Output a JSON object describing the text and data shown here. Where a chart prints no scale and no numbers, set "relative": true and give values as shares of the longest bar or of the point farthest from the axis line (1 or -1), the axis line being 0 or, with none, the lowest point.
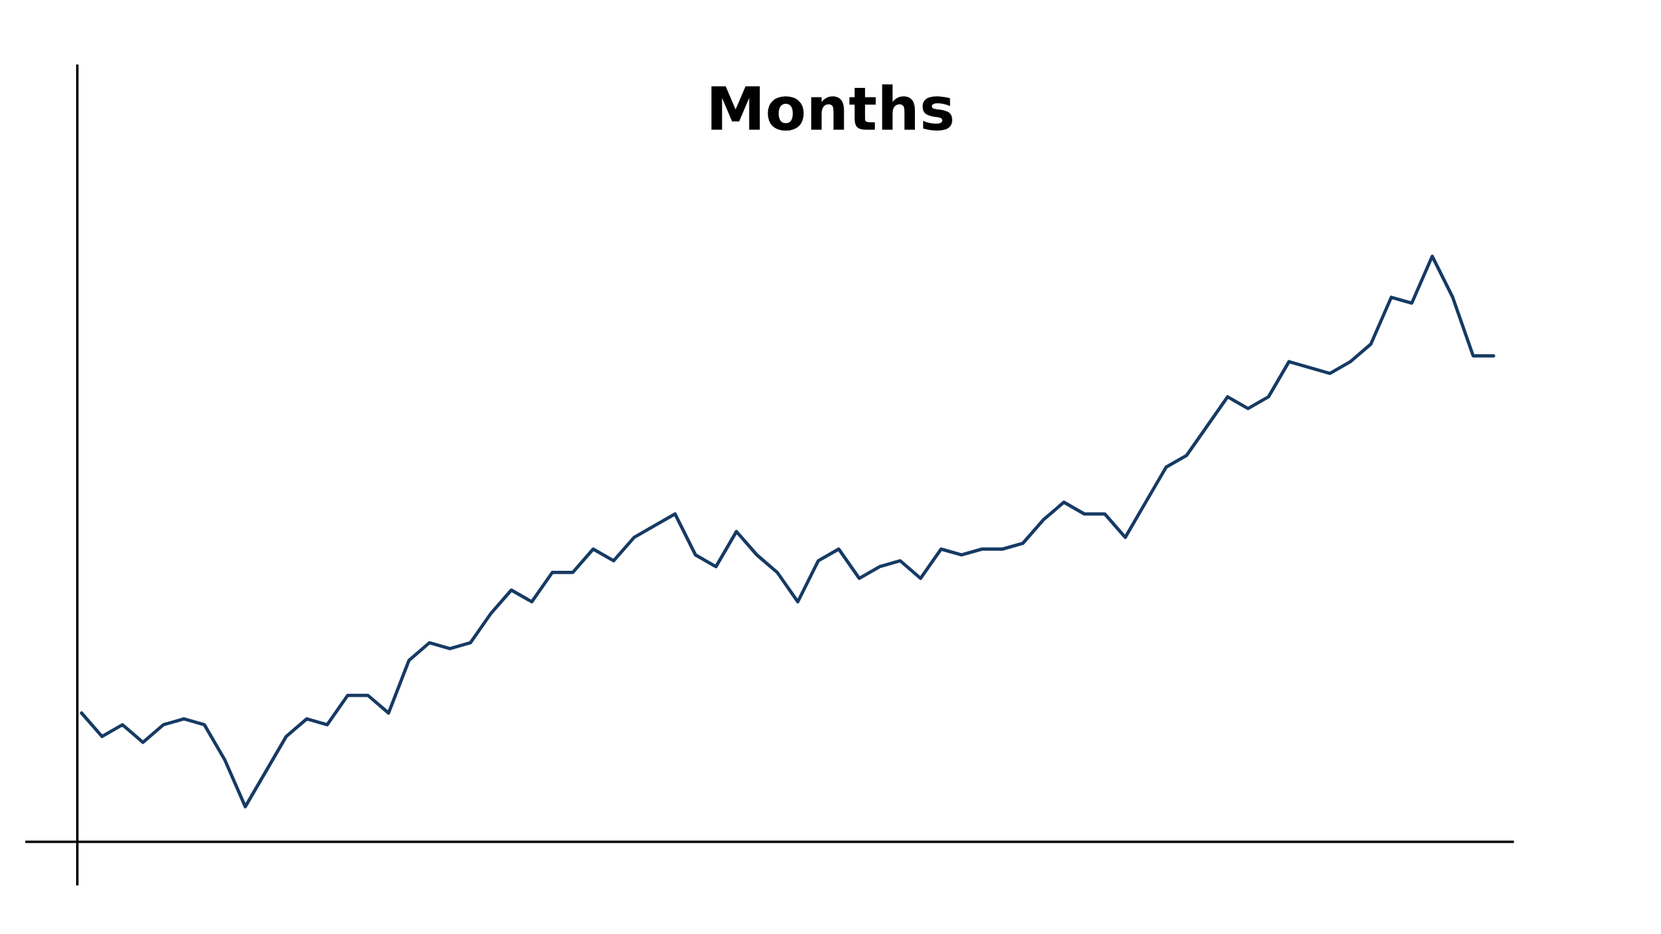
{
  "chart_data": {
    "type": "line",
    "title": "Months",
    "relative": true,
    "tick_labels": false,
    "grid": false,
    "legend": false,
    "categories": [
      null,
      null,
      null,
      null,
      null,
      null,
      null,
      null,
      null,
      null,
      null,
      null,
      null,
      null,
      null,
      null,
      null,
      null,
      null,
      null,
      null,
      null,
      null,
      null,
      null,
      null,
      null,
      null,
      null,
      null,
      null,
      null,
      null,
      null,
      null,
      null,
      null,
      null,
      null,
      null,
      null,
      null,
      null,
      null,
      null,
      null,
      null,
      null,
      null,
      null,
      null,
      null,
      null,
      null,
      null,
      null,
      null,
      null,
      null,
      null,
      null,
      null,
      null,
      null,
      null,
      null,
      null,
      null,
      null,
      null
    ],
    "series": [
      {
        "color": "#163a63",
        "values": [
          0.22,
          0.18,
          0.2,
          0.17,
          0.2,
          0.21,
          0.2,
          0.14,
          0.06,
          0.12,
          0.18,
          0.21,
          0.2,
          0.25,
          0.25,
          0.22,
          0.31,
          0.34,
          0.33,
          0.34,
          0.39,
          0.43,
          0.41,
          0.46,
          0.46,
          0.5,
          0.48,
          0.52,
          0.54,
          0.56,
          0.49,
          0.47,
          0.53,
          0.49,
          0.46,
          0.41,
          0.48,
          0.5,
          0.45,
          0.47,
          0.48,
          0.45,
          0.5,
          0.49,
          0.5,
          0.5,
          0.51,
          0.55,
          0.58,
          0.56,
          0.56,
          0.52,
          0.58,
          0.64,
          0.66,
          0.71,
          0.76,
          0.74,
          0.76,
          0.82,
          0.81,
          0.8,
          0.82,
          0.85,
          0.93,
          0.92,
          1,
          0.93,
          0.83,
          0.83
        ]
      }
    ]
  }
}
